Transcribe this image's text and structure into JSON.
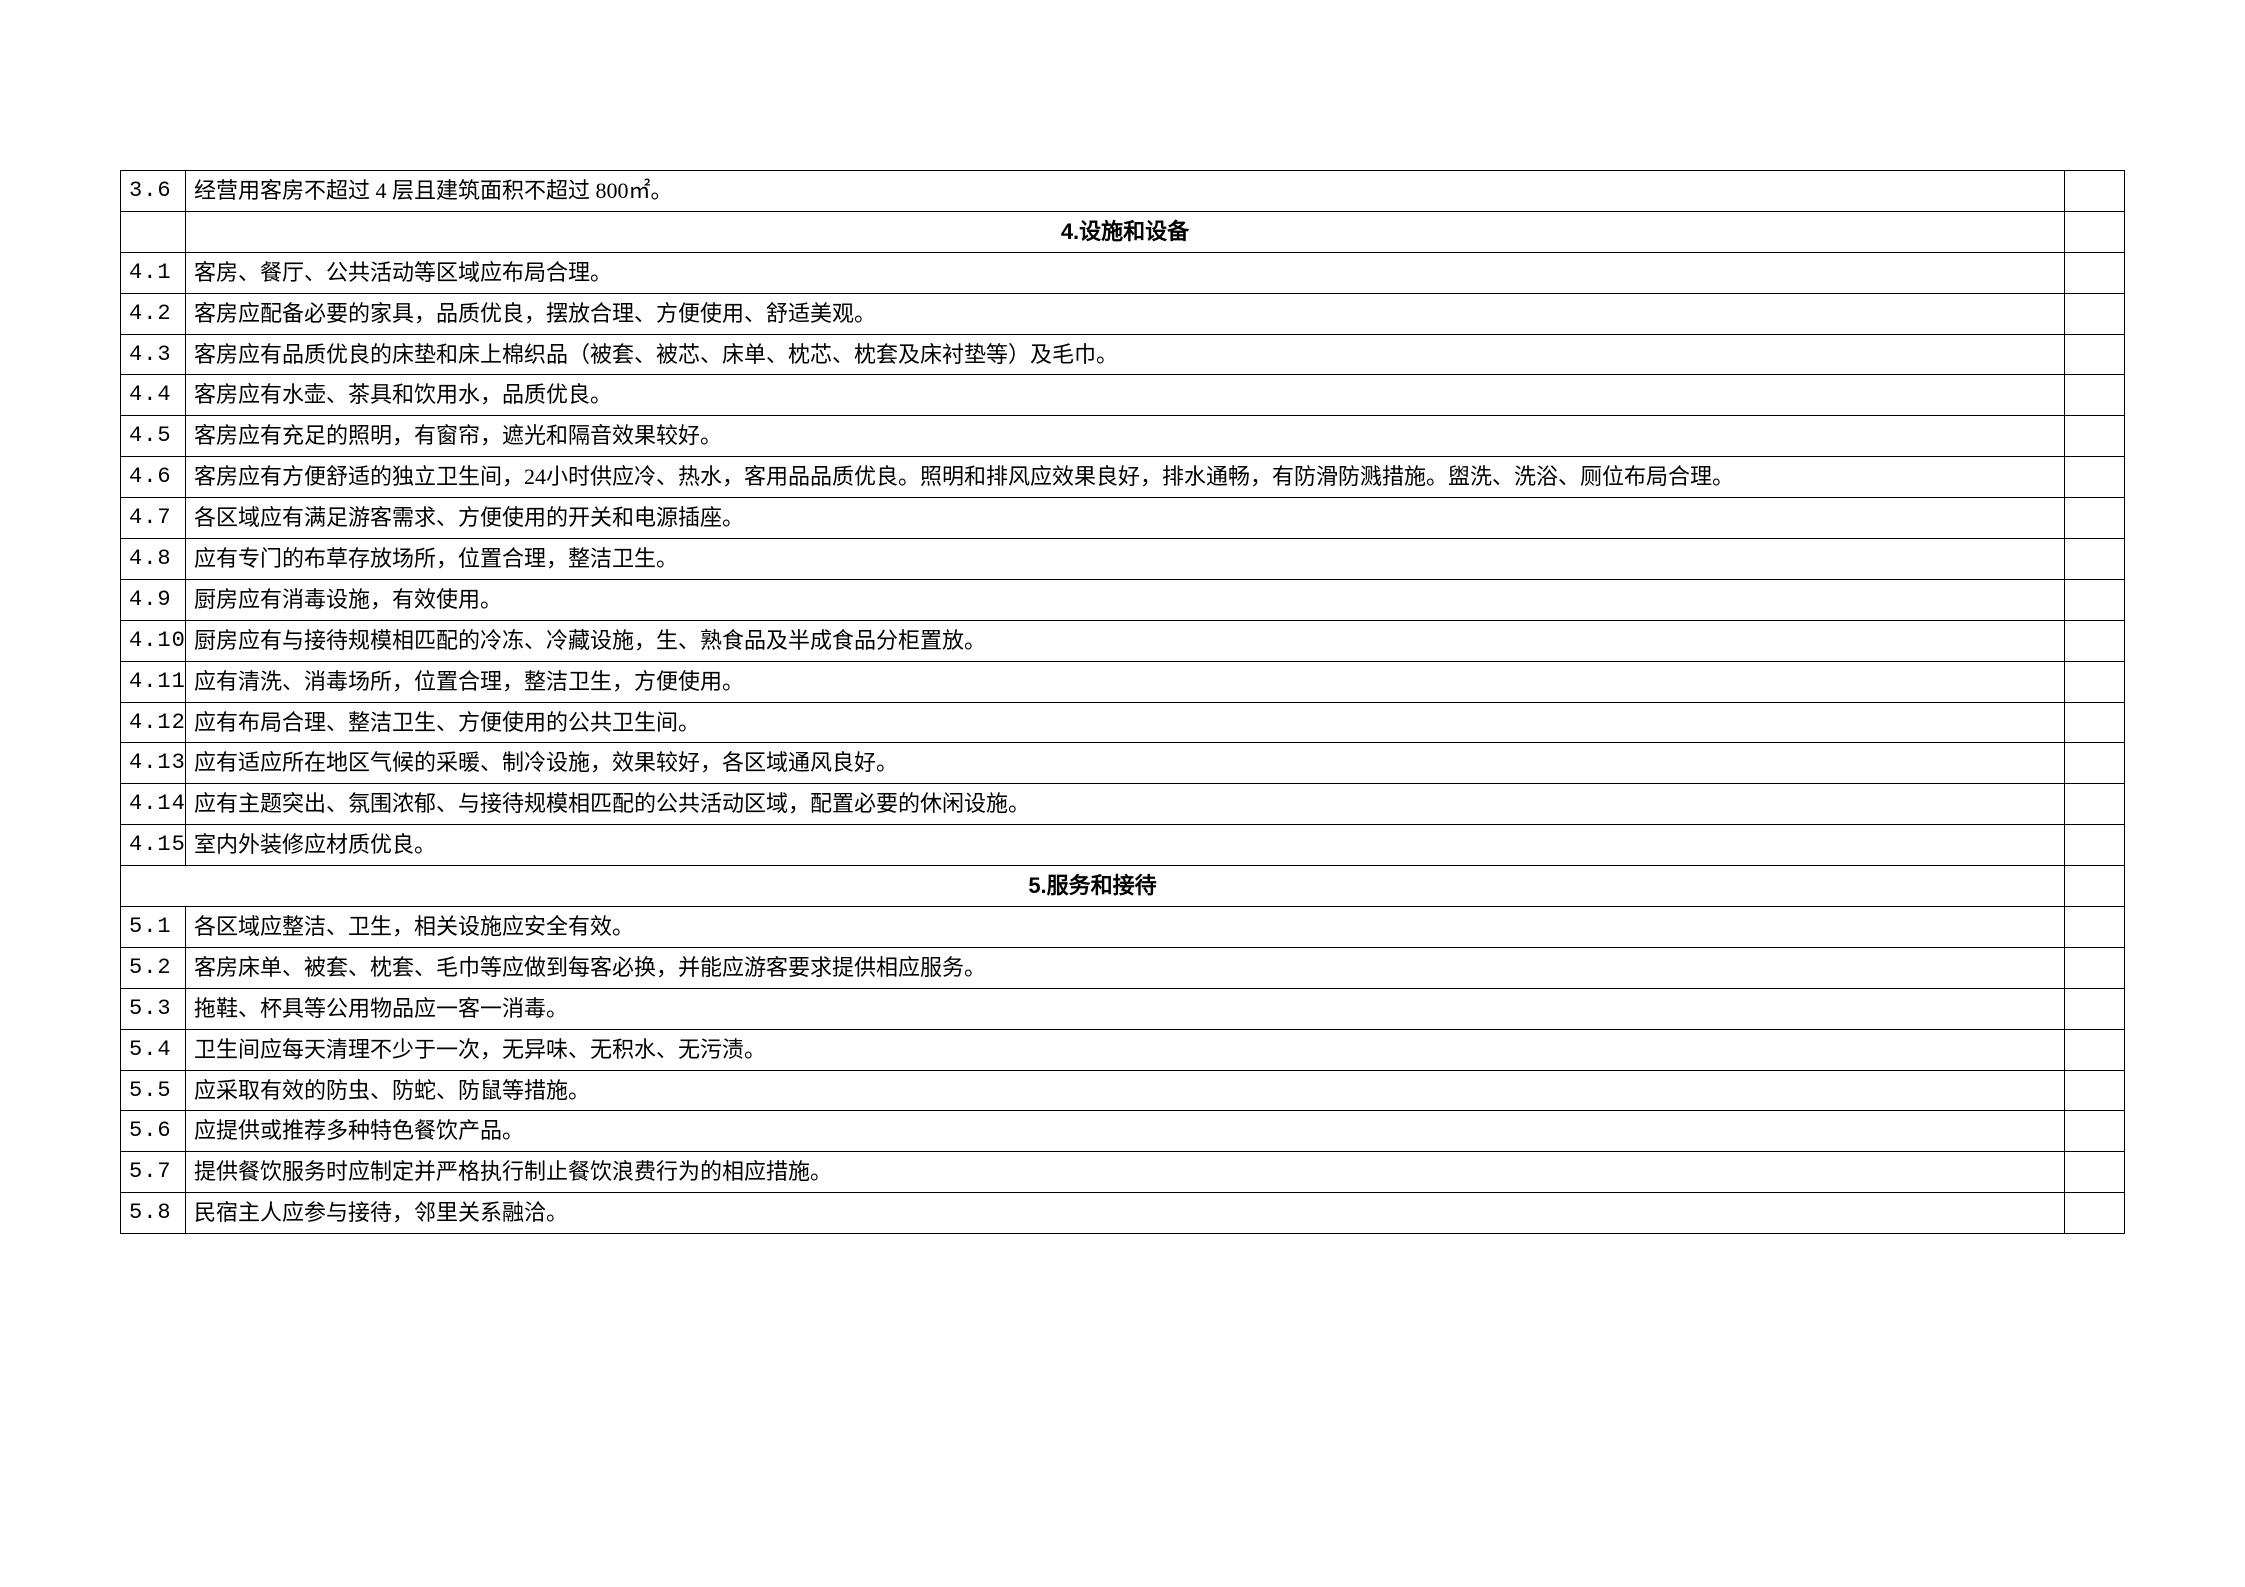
{
  "table": {
    "border_color": "#000000",
    "background_color": "#ffffff",
    "text_color": "#000000",
    "font_size": 22,
    "col_widths": {
      "num": 65,
      "check": 60
    },
    "rows": [
      {
        "num": "3.6",
        "content": "经营用客房不超过 4 层且建筑面积不超过 800㎡。",
        "type": "item"
      },
      {
        "num": "",
        "content": "4.设施和设备",
        "type": "section"
      },
      {
        "num": "4.1",
        "content": "客房、餐厅、公共活动等区域应布局合理。",
        "type": "item"
      },
      {
        "num": "4.2",
        "content": "客房应配备必要的家具，品质优良，摆放合理、方便使用、舒适美观。",
        "type": "item"
      },
      {
        "num": "4.3",
        "content": "客房应有品质优良的床垫和床上棉织品（被套、被芯、床单、枕芯、枕套及床衬垫等）及毛巾。",
        "type": "item"
      },
      {
        "num": "4.4",
        "content": "客房应有水壶、茶具和饮用水，品质优良。",
        "type": "item"
      },
      {
        "num": "4.5",
        "content": "客房应有充足的照明，有窗帘，遮光和隔音效果较好。",
        "type": "item"
      },
      {
        "num": "4.6",
        "content": "客房应有方便舒适的独立卫生间，24小时供应冷、热水，客用品品质优良。照明和排风应效果良好，排水通畅，有防滑防溅措施。盥洗、洗浴、厕位布局合理。",
        "type": "item"
      },
      {
        "num": "4.7",
        "content": "各区域应有满足游客需求、方便使用的开关和电源插座。",
        "type": "item"
      },
      {
        "num": "4.8",
        "content": "应有专门的布草存放场所，位置合理，整洁卫生。",
        "type": "item"
      },
      {
        "num": "4.9",
        "content": "厨房应有消毒设施，有效使用。",
        "type": "item"
      },
      {
        "num": "4.10",
        "content": "厨房应有与接待规模相匹配的冷冻、冷藏设施，生、熟食品及半成食品分柜置放。",
        "type": "item"
      },
      {
        "num": "4.11",
        "content": "应有清洗、消毒场所，位置合理，整洁卫生，方便使用。",
        "type": "item"
      },
      {
        "num": "4.12",
        "content": "应有布局合理、整洁卫生、方便使用的公共卫生间。",
        "type": "item"
      },
      {
        "num": "4.13",
        "content": "应有适应所在地区气候的采暖、制冷设施，效果较好，各区域通风良好。",
        "type": "item"
      },
      {
        "num": "4.14",
        "content": "应有主题突出、氛围浓郁、与接待规模相匹配的公共活动区域，配置必要的休闲设施。",
        "type": "item"
      },
      {
        "num": "4.15",
        "content": "室内外装修应材质优良。",
        "type": "item"
      },
      {
        "num": "",
        "content": "5.服务和接待",
        "type": "section",
        "span": true
      },
      {
        "num": "5.1",
        "content": "各区域应整洁、卫生，相关设施应安全有效。",
        "type": "item"
      },
      {
        "num": "5.2",
        "content": "客房床单、被套、枕套、毛巾等应做到每客必换，并能应游客要求提供相应服务。",
        "type": "item"
      },
      {
        "num": "5.3",
        "content": "拖鞋、杯具等公用物品应一客一消毒。",
        "type": "item"
      },
      {
        "num": "5.4",
        "content": "卫生间应每天清理不少于一次，无异味、无积水、无污渍。",
        "type": "item"
      },
      {
        "num": "5.5",
        "content": "应采取有效的防虫、防蛇、防鼠等措施。",
        "type": "item"
      },
      {
        "num": "5.6",
        "content": "应提供或推荐多种特色餐饮产品。",
        "type": "item"
      },
      {
        "num": "5.7",
        "content": "提供餐饮服务时应制定并严格执行制止餐饮浪费行为的相应措施。",
        "type": "item"
      },
      {
        "num": "5.8",
        "content": "民宿主人应参与接待，邻里关系融洽。",
        "type": "item"
      }
    ]
  }
}
